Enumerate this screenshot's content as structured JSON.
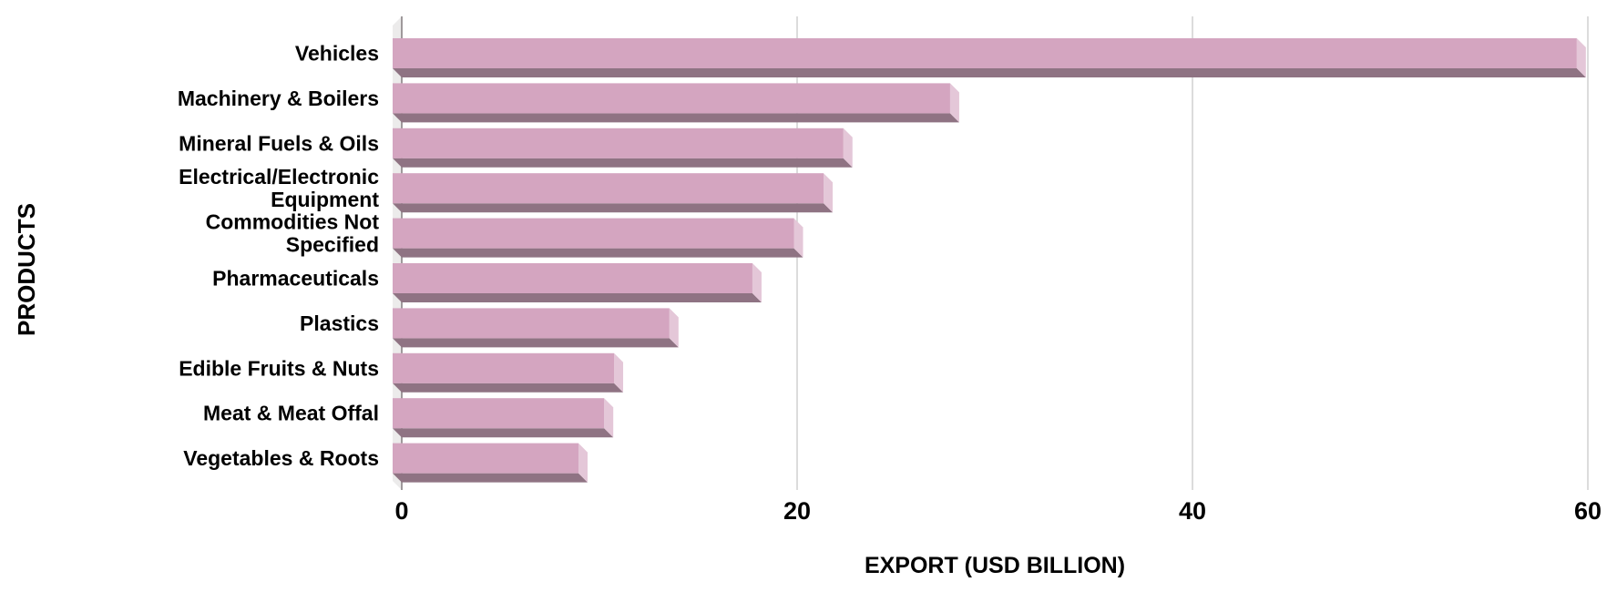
{
  "chart_data": {
    "type": "bar",
    "orientation": "horizontal",
    "title": "",
    "xlabel": "EXPORT (USD BILLION)",
    "ylabel": "PRODUCTS",
    "categories": [
      "Vehicles",
      "Machinery & Boilers",
      "Mineral Fuels & Oils",
      "Electrical/Electronic\nEquipment",
      "Commodities Not\nSpecified",
      "Pharmaceuticals",
      "Plastics",
      "Edible Fruits & Nuts",
      "Meat & Meat Offal",
      "Vegetables & Roots"
    ],
    "values": [
      59.9,
      28.2,
      22.8,
      21.8,
      20.3,
      18.2,
      14.0,
      11.2,
      10.7,
      9.4
    ],
    "xlim": [
      0,
      60
    ],
    "xticks": [
      0,
      20,
      40,
      60
    ],
    "grid": true,
    "legend": false,
    "effect": "3d-bevel",
    "colors": {
      "bar_face": "#d4a5c0",
      "bar_end_cap": "#e4c7d8",
      "bar_bottom_shadow": "#8f7383",
      "axis_wall": "#ecebeb",
      "axis_wall_edge": "#9e999b",
      "gridline": "#d0d0d0",
      "text": "#000000",
      "background": "#ffffff"
    }
  }
}
